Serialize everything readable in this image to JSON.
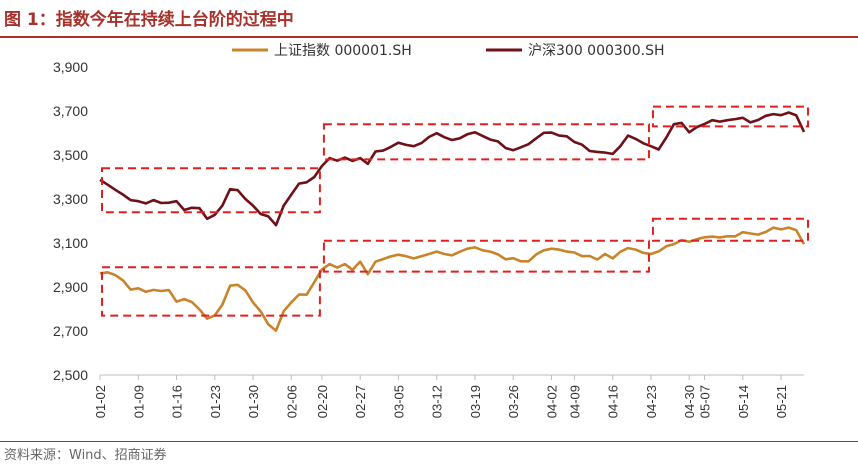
{
  "header": {
    "title": "图 1：指数今年在持续上台阶的过程中"
  },
  "footer": {
    "source": "资料来源：Wind、招商证券"
  },
  "colors": {
    "accent": "#a8312b",
    "series_sh": "#c8842a",
    "series_hs300": "#6e1118",
    "box": "#e02020"
  },
  "chart_data": {
    "type": "line",
    "title": "",
    "xlabel": "",
    "ylabel": "",
    "ylim": [
      2500,
      3900
    ],
    "yticks": [
      2500,
      2700,
      2900,
      3100,
      3300,
      3500,
      3700,
      3900
    ],
    "ytick_labels": [
      "2,500",
      "2,700",
      "2,900",
      "3,100",
      "3,300",
      "3,500",
      "3,700",
      "3,900"
    ],
    "x_tick_labels": [
      "01-02",
      "01-09",
      "01-16",
      "01-23",
      "01-30",
      "02-06",
      "02-13",
      "02-20",
      "02-27",
      "03-05",
      "03-12",
      "03-19",
      "03-26",
      "04-02",
      "04-09",
      "04-16",
      "04-23",
      "04-30",
      "05-07",
      "05-14",
      "05-21"
    ],
    "grid": false,
    "legend": "top",
    "dates": [
      "01-02",
      "01-03",
      "01-04",
      "01-05",
      "01-08",
      "01-09",
      "01-10",
      "01-11",
      "01-12",
      "01-15",
      "01-16",
      "01-17",
      "01-18",
      "01-19",
      "01-22",
      "01-23",
      "01-24",
      "01-25",
      "01-26",
      "01-29",
      "01-30",
      "01-31",
      "02-01",
      "02-02",
      "02-05",
      "02-06",
      "02-07",
      "02-08",
      "02-19",
      "02-20",
      "02-21",
      "02-22",
      "02-23",
      "02-26",
      "02-27",
      "02-28",
      "02-29",
      "03-01",
      "03-04",
      "03-05",
      "03-06",
      "03-07",
      "03-08",
      "03-11",
      "03-12",
      "03-13",
      "03-14",
      "03-15",
      "03-18",
      "03-19",
      "03-20",
      "03-21",
      "03-22",
      "03-25",
      "03-26",
      "03-27",
      "03-28",
      "03-29",
      "04-01",
      "04-02",
      "04-03",
      "04-08",
      "04-09",
      "04-10",
      "04-11",
      "04-12",
      "04-15",
      "04-16",
      "04-17",
      "04-18",
      "04-19",
      "04-22",
      "04-23",
      "04-24",
      "04-25",
      "04-26",
      "04-29",
      "04-30",
      "05-06",
      "05-07",
      "05-08",
      "05-09",
      "05-10",
      "05-13",
      "05-14",
      "05-15",
      "05-16",
      "05-17",
      "05-20",
      "05-21",
      "05-22",
      "05-23",
      "05-24"
    ],
    "series": [
      {
        "name": "上证指数 000001.SH",
        "values": [
          2962,
          2967,
          2954,
          2930,
          2888,
          2894,
          2878,
          2887,
          2882,
          2886,
          2833,
          2845,
          2832,
          2798,
          2756,
          2771,
          2820,
          2906,
          2910,
          2884,
          2830,
          2789,
          2730,
          2702,
          2790,
          2830,
          2866,
          2865,
          2922,
          2980,
          3004,
          2988,
          3004,
          2978,
          3015,
          2958,
          3015,
          3027,
          3039,
          3047,
          3040,
          3030,
          3040,
          3050,
          3061,
          3050,
          3044,
          3060,
          3074,
          3080,
          3067,
          3061,
          3048,
          3026,
          3031,
          3017,
          3017,
          3048,
          3067,
          3074,
          3070,
          3061,
          3057,
          3040,
          3041,
          3025,
          3050,
          3030,
          3060,
          3077,
          3070,
          3055,
          3050,
          3062,
          3085,
          3095,
          3113,
          3106,
          3117,
          3126,
          3129,
          3125,
          3131,
          3130,
          3149,
          3143,
          3138,
          3150,
          3170,
          3162,
          3170,
          3158,
          3095
        ]
      },
      {
        "name": "沪深300 000300.SH",
        "values": [
          3387,
          3365,
          3342,
          3320,
          3295,
          3290,
          3280,
          3295,
          3282,
          3283,
          3290,
          3250,
          3260,
          3258,
          3210,
          3228,
          3270,
          3345,
          3340,
          3300,
          3270,
          3232,
          3221,
          3181,
          3270,
          3320,
          3370,
          3376,
          3400,
          3450,
          3486,
          3474,
          3488,
          3473,
          3486,
          3460,
          3516,
          3520,
          3537,
          3556,
          3546,
          3540,
          3554,
          3582,
          3599,
          3581,
          3568,
          3576,
          3594,
          3603,
          3587,
          3570,
          3562,
          3532,
          3522,
          3535,
          3549,
          3576,
          3601,
          3602,
          3588,
          3585,
          3559,
          3547,
          3518,
          3514,
          3511,
          3505,
          3540,
          3588,
          3573,
          3553,
          3540,
          3525,
          3579,
          3640,
          3646,
          3603,
          3627,
          3641,
          3658,
          3652,
          3658,
          3663,
          3669,
          3648,
          3659,
          3678,
          3686,
          3681,
          3693,
          3680,
          3605
        ]
      }
    ],
    "annotation_boxes": [
      {
        "series": "沪深300 000300.SH",
        "from": "01-02",
        "to": "02-20",
        "y_range": [
          3240,
          3440
        ]
      },
      {
        "series": "沪深300 000300.SH",
        "from": "02-20",
        "to": "04-23",
        "y_range": [
          3480,
          3640
        ]
      },
      {
        "series": "沪深300 000300.SH",
        "from": "04-23",
        "to": "05-24",
        "y_range": [
          3630,
          3720
        ]
      },
      {
        "series": "上证指数 000001.SH",
        "from": "01-02",
        "to": "02-20",
        "y_range": [
          2770,
          2990
        ]
      },
      {
        "series": "上证指数 000001.SH",
        "from": "02-20",
        "to": "04-23",
        "y_range": [
          2970,
          3110
        ]
      },
      {
        "series": "上证指数 000001.SH",
        "from": "04-23",
        "to": "05-24",
        "y_range": [
          3110,
          3210
        ]
      }
    ]
  }
}
